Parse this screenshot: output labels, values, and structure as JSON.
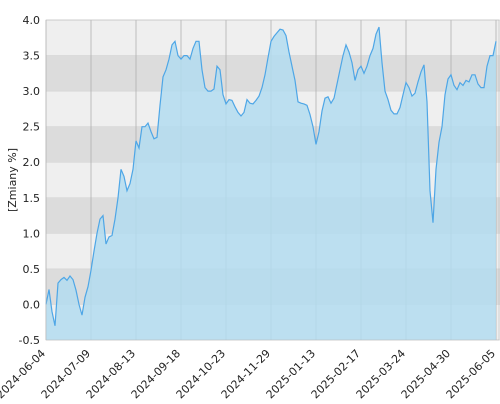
{
  "chart_data": {
    "type": "area",
    "y_label": "[Zmiany %]",
    "color": "#4ea6e6",
    "fill": "#b3dcf0",
    "ylim": [
      -0.5,
      4.0
    ],
    "yticks": [
      {
        "value": 4,
        "label": "4.0"
      },
      3.5,
      {
        "value": 3,
        "label": "3.0"
      },
      2.5,
      {
        "value": 2,
        "label": "2.0"
      },
      1.5,
      {
        "value": 1,
        "label": "1.0"
      },
      0.5,
      {
        "value": 0,
        "label": "0.0"
      },
      -0.5
    ],
    "grid": true,
    "categories": [
      "2024-06-04",
      null,
      null,
      null,
      null,
      null,
      null,
      null,
      null,
      null,
      null,
      null,
      null,
      null,
      null,
      "2024-07-09",
      null,
      null,
      null,
      null,
      null,
      null,
      null,
      null,
      null,
      null,
      null,
      null,
      null,
      null,
      "2024-08-13",
      null,
      null,
      null,
      null,
      null,
      null,
      null,
      null,
      null,
      null,
      null,
      null,
      null,
      null,
      "2024-09-18",
      null,
      null,
      null,
      null,
      null,
      null,
      null,
      null,
      null,
      null,
      null,
      null,
      null,
      null,
      "2024-10-23",
      null,
      null,
      null,
      null,
      null,
      null,
      null,
      null,
      null,
      null,
      null,
      null,
      null,
      null,
      "2024-11-29",
      null,
      null,
      null,
      null,
      null,
      null,
      null,
      null,
      null,
      null,
      null,
      null,
      null,
      null,
      "2025-01-13",
      null,
      null,
      null,
      null,
      null,
      null,
      null,
      null,
      null,
      null,
      null,
      null,
      null,
      null,
      "2025-02-17",
      null,
      null,
      null,
      null,
      null,
      null,
      null,
      null,
      null,
      null,
      null,
      null,
      null,
      null,
      "2025-03-24",
      null,
      null,
      null,
      null,
      null,
      null,
      null,
      null,
      null,
      null,
      null,
      null,
      null,
      null,
      "2025-04-30",
      null,
      null,
      null,
      null,
      null,
      null,
      null,
      null,
      null,
      null,
      null,
      null,
      null,
      null,
      "2025-06-05"
    ],
    "values": [
      0.0,
      0.21,
      -0.1,
      -0.3,
      0.3,
      0.35,
      0.38,
      0.34,
      0.4,
      0.35,
      0.2,
      0.0,
      -0.15,
      0.1,
      0.25,
      0.48,
      0.75,
      1.0,
      1.2,
      1.25,
      0.85,
      0.95,
      0.97,
      1.2,
      1.5,
      1.9,
      1.8,
      1.6,
      1.7,
      1.9,
      2.3,
      2.2,
      2.5,
      2.5,
      2.55,
      2.43,
      2.33,
      2.35,
      2.8,
      3.2,
      3.3,
      3.45,
      3.65,
      3.7,
      3.5,
      3.45,
      3.5,
      3.5,
      3.45,
      3.6,
      3.7,
      3.7,
      3.3,
      3.05,
      3.0,
      3.0,
      3.03,
      3.35,
      3.3,
      2.95,
      2.82,
      2.88,
      2.87,
      2.78,
      2.7,
      2.65,
      2.7,
      2.88,
      2.83,
      2.82,
      2.87,
      2.93,
      3.05,
      3.23,
      3.47,
      3.7,
      3.77,
      3.82,
      3.87,
      3.86,
      3.78,
      3.55,
      3.35,
      3.15,
      2.85,
      2.83,
      2.82,
      2.8,
      2.67,
      2.5,
      2.25,
      2.43,
      2.72,
      2.9,
      2.92,
      2.83,
      2.9,
      3.1,
      3.3,
      3.5,
      3.65,
      3.55,
      3.4,
      3.15,
      3.3,
      3.35,
      3.25,
      3.35,
      3.5,
      3.6,
      3.8,
      3.9,
      3.4,
      3.0,
      2.88,
      2.73,
      2.68,
      2.68,
      2.77,
      2.95,
      3.12,
      3.05,
      2.93,
      2.97,
      3.13,
      3.27,
      3.37,
      2.85,
      1.6,
      1.15,
      1.9,
      2.28,
      2.5,
      2.95,
      3.17,
      3.23,
      3.08,
      3.02,
      3.12,
      3.08,
      3.15,
      3.13,
      3.23,
      3.23,
      3.1,
      3.05,
      3.05,
      3.35,
      3.5,
      3.5,
      3.7
    ]
  }
}
